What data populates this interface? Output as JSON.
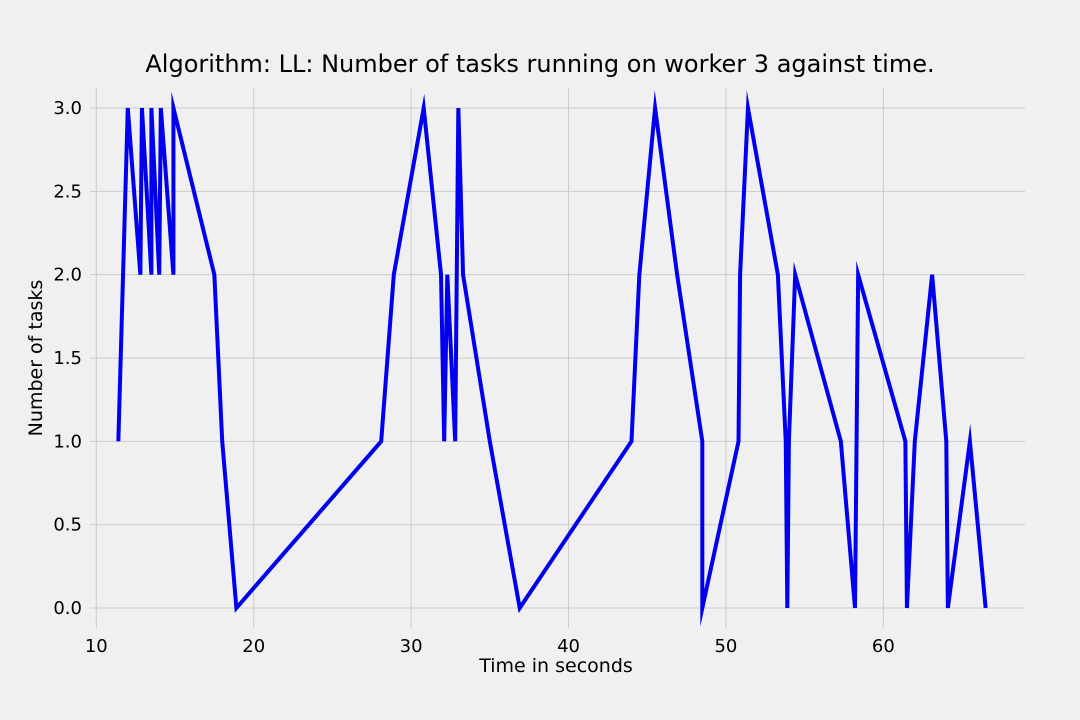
{
  "background_color": "#f0f0f0",
  "grid_color": "#cbcbcb",
  "chart_data": {
    "type": "line",
    "title": "Algorithm: LL: Number of tasks running on worker 3 against time.",
    "xlabel": "Time in seconds",
    "ylabel": "Number of tasks",
    "xlim": [
      9.6,
      69.0
    ],
    "ylim": [
      -0.12,
      3.12
    ],
    "xticks": [
      10,
      20,
      30,
      40,
      50,
      60
    ],
    "xtick_labels": [
      "10",
      "20",
      "30",
      "40",
      "50",
      "60"
    ],
    "yticks": [
      0.0,
      0.5,
      1.0,
      1.5,
      2.0,
      2.5,
      3.0
    ],
    "ytick_labels": [
      "0.0",
      "0.5",
      "1.0",
      "1.5",
      "2.0",
      "2.5",
      "3.0"
    ],
    "grid": true,
    "series": [
      {
        "color": "#0000ee",
        "x": [
          11.4,
          11.7,
          12.0,
          12.8,
          12.9,
          13.5,
          13.5,
          14.0,
          14.1,
          14.9,
          14.9,
          17.5,
          18.0,
          18.9,
          28.1,
          28.9,
          30.8,
          31.9,
          32.1,
          32.3,
          32.8,
          33.0,
          33.3,
          35.0,
          36.9,
          44.0,
          44.5,
          45.5,
          46.9,
          48.5,
          48.5,
          50.8,
          50.9,
          51.4,
          53.3,
          53.8,
          53.9,
          54.0,
          54.4,
          57.3,
          58.2,
          58.4,
          61.4,
          61.5,
          62.0,
          63.1,
          64.0,
          64.1,
          65.5,
          66.5
        ],
        "y": [
          1,
          2,
          3,
          2,
          3,
          2,
          3,
          2,
          3,
          2,
          3,
          2,
          1,
          0,
          1,
          2,
          3,
          2,
          1,
          2,
          1,
          3,
          2,
          1,
          0,
          1,
          2,
          3,
          2,
          1,
          0,
          1,
          2,
          3,
          2,
          1,
          0,
          1,
          2,
          1,
          0,
          2,
          1,
          0,
          1,
          2,
          1,
          0,
          1,
          0
        ]
      }
    ]
  }
}
